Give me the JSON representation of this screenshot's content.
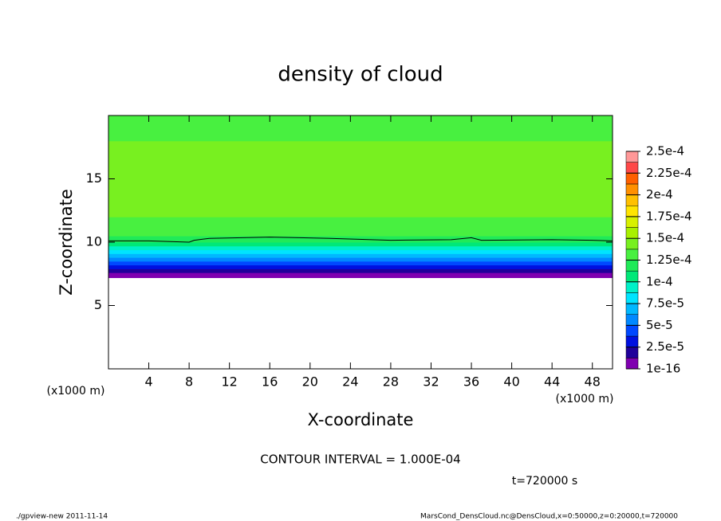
{
  "chart_data": {
    "type": "contour",
    "title": "density of cloud",
    "x_label": "X-coordinate",
    "y_label": "Z-coordinate",
    "x_unit": "(x1000 m)",
    "y_unit": "(x1000 m)",
    "xlim": [
      0,
      50
    ],
    "xticks": [
      4,
      8,
      12,
      16,
      20,
      24,
      28,
      32,
      36,
      40,
      44,
      48
    ],
    "ylim": [
      0,
      20
    ],
    "yticks": [
      5,
      10,
      15
    ],
    "z": [
      7.2,
      7.6,
      7.9,
      8.2,
      8.5,
      8.8,
      9.1,
      9.4,
      9.7,
      10.0,
      10.5,
      11,
      12,
      14,
      16,
      18,
      19
    ],
    "values": [
      1e-05,
      2e-05,
      3e-05,
      4.5e-05,
      5.5e-05,
      7e-05,
      8e-05,
      9.5e-05,
      0.000105,
      0.000115,
      0.00013,
      0.000135,
      0.00014,
      0.000142,
      0.000138,
      0.000133,
      0.000128
    ],
    "contour_x": [
      0,
      4,
      8,
      8.5,
      10,
      16,
      22,
      28,
      34,
      36,
      37,
      44,
      48,
      50
    ],
    "contour_z": [
      10.1,
      10.1,
      10.0,
      10.15,
      10.3,
      10.4,
      10.3,
      10.15,
      10.2,
      10.35,
      10.15,
      10.2,
      10.15,
      10.1
    ],
    "levels": [
      {
        "value": 1e-16,
        "label": "1e-16"
      },
      {
        "value": 2.5e-05,
        "label": "2.5e-5"
      },
      {
        "value": 5e-05,
        "label": "5e-5"
      },
      {
        "value": 7.5e-05,
        "label": "7.5e-5"
      },
      {
        "value": 0.0001,
        "label": "1e-4"
      },
      {
        "value": 0.000125,
        "label": "1.25e-4"
      },
      {
        "value": 0.00015,
        "label": "1.5e-4"
      },
      {
        "value": 0.000175,
        "label": "1.75e-4"
      },
      {
        "value": 0.0002,
        "label": "2e-4"
      },
      {
        "value": 0.000225,
        "label": "2.25e-4"
      },
      {
        "value": 0.00025,
        "label": "2.5e-4"
      }
    ],
    "colors": [
      "#7f00b0",
      "#20009a",
      "#0010e0",
      "#0048ff",
      "#0088ff",
      "#00b8ff",
      "#00e4ff",
      "#00f0c8",
      "#00e878",
      "#20ea58",
      "#48f040",
      "#78f020",
      "#a8f000",
      "#d8f000",
      "#ffe400",
      "#ffc000",
      "#ff9000",
      "#ff6000",
      "#ff4848",
      "#ff9898"
    ],
    "contour_interval": "CONTOUR INTERVAL = 1.000E-04",
    "time_label": "t=720000 s",
    "footer_left": "./gpview-new   2011-11-14",
    "footer_right": "MarsCond_DensCloud.nc@DensCloud,x=0:50000,z=0:20000,t=720000"
  }
}
